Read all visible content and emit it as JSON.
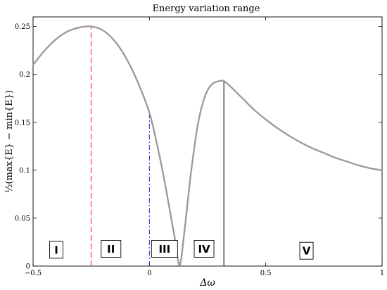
{
  "chart_data": {
    "type": "line",
    "title": "Energy variation range",
    "xlabel": "Δω",
    "ylabel": "½(max{E} − min{E})",
    "xlim": [
      -0.5,
      1.0
    ],
    "ylim": [
      0,
      0.26
    ],
    "xticks": [
      -0.5,
      0,
      0.5,
      1
    ],
    "xtick_labels": [
      "−0.5",
      "0",
      "0.5",
      "1"
    ],
    "yticks": [
      0,
      0.05,
      0.1,
      0.15,
      0.2,
      0.25
    ],
    "ytick_labels": [
      "0",
      "0.05",
      "0.1",
      "0.15",
      "0.2",
      "0.25"
    ],
    "grid": false,
    "series": [
      {
        "color": "#999999",
        "x": [
          -0.5,
          -0.45,
          -0.4,
          -0.35,
          -0.3,
          -0.25,
          -0.2,
          -0.15,
          -0.1,
          -0.05,
          0.0,
          0.03,
          0.06,
          0.09,
          0.11,
          0.13,
          0.15,
          0.18,
          0.21,
          0.24,
          0.27,
          0.3,
          0.32,
          0.35,
          0.4,
          0.45,
          0.5,
          0.55,
          0.6,
          0.65,
          0.7,
          0.75,
          0.8,
          0.85,
          0.9,
          0.95,
          1.0
        ],
        "values": [
          0.21,
          0.225,
          0.237,
          0.245,
          0.249,
          0.25,
          0.246,
          0.235,
          0.217,
          0.192,
          0.16,
          0.13,
          0.095,
          0.055,
          0.028,
          0.001,
          0.035,
          0.1,
          0.15,
          0.178,
          0.19,
          0.193,
          0.193,
          0.187,
          0.175,
          0.163,
          0.153,
          0.144,
          0.136,
          0.129,
          0.123,
          0.118,
          0.113,
          0.109,
          0.105,
          0.102,
          0.1
        ]
      }
    ],
    "vlines": [
      {
        "x": -0.25,
        "y": 0.25,
        "style": "dashed",
        "color": "#ff6666"
      },
      {
        "x": 0.0,
        "y": 0.16,
        "style": "dashdot",
        "color": "#2222cc"
      },
      {
        "x": 0.32,
        "y": 0.193,
        "style": "solid",
        "color": "#000000"
      }
    ],
    "regions": [
      {
        "label": "I",
        "x": -0.4,
        "y": 0.017
      },
      {
        "label": "II",
        "x": -0.165,
        "y": 0.018
      },
      {
        "label": "III",
        "x": 0.065,
        "y": 0.018
      },
      {
        "label": "IV",
        "x": 0.235,
        "y": 0.018
      },
      {
        "label": "V",
        "x": 0.675,
        "y": 0.016
      }
    ]
  }
}
